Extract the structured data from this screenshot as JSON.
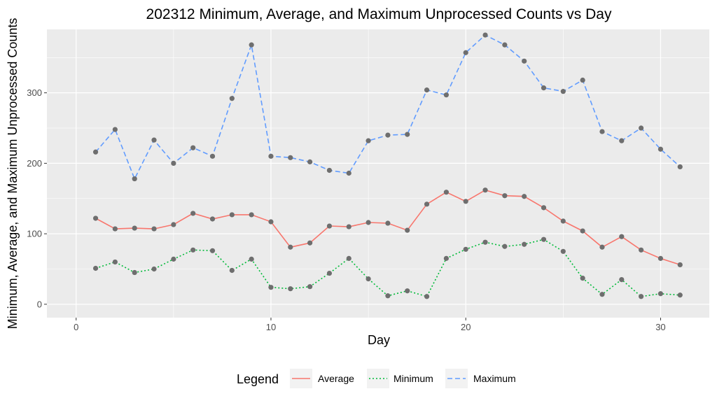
{
  "chart_data": {
    "type": "line",
    "title": "202312 Minimum, Average, and Maximum Unprocessed Counts vs Day",
    "xlabel": "Day",
    "ylabel": "Minimum, Average, and Maximum Unprocessed Counts",
    "xlim": [
      0,
      31
    ],
    "ylim": [
      0,
      380
    ],
    "xticks": [
      0,
      10,
      20,
      30
    ],
    "yticks": [
      0,
      100,
      200,
      300
    ],
    "grid": true,
    "legend_title": "Legend",
    "legend_position": "bottom",
    "x": [
      1,
      2,
      3,
      4,
      5,
      6,
      7,
      8,
      9,
      10,
      11,
      12,
      13,
      14,
      15,
      16,
      17,
      18,
      19,
      20,
      21,
      22,
      23,
      24,
      25,
      26,
      27,
      28,
      29,
      30,
      31
    ],
    "series": [
      {
        "name": "Average",
        "color": "#F8766D",
        "dash": "solid",
        "values": [
          122,
          107,
          108,
          107,
          113,
          129,
          121,
          127,
          127,
          117,
          81,
          87,
          111,
          110,
          116,
          115,
          105,
          142,
          159,
          146,
          162,
          154,
          153,
          137,
          118,
          104,
          81,
          96,
          77,
          65,
          56
        ]
      },
      {
        "name": "Minimum",
        "color": "#00BA38",
        "dash": "dotted",
        "values": [
          51,
          60,
          45,
          50,
          64,
          77,
          76,
          48,
          64,
          24,
          22,
          25,
          44,
          65,
          36,
          12,
          19,
          11,
          65,
          78,
          88,
          82,
          85,
          92,
          75,
          37,
          14,
          35,
          11,
          15,
          13
        ]
      },
      {
        "name": "Maximum",
        "color": "#619CFF",
        "dash": "dashed",
        "values": [
          216,
          248,
          178,
          233,
          200,
          222,
          210,
          292,
          368,
          210,
          208,
          202,
          190,
          186,
          232,
          240,
          241,
          304,
          297,
          357,
          382,
          368,
          345,
          307,
          302,
          318,
          245,
          232,
          250,
          220,
          195
        ]
      }
    ]
  }
}
